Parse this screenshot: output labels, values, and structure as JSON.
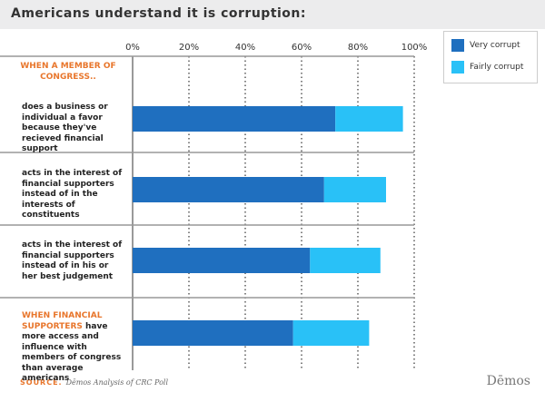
{
  "chart_data": {
    "type": "stacked-bar-horizontal",
    "title": "Americans understand it is corruption:",
    "annotations": [
      "WHEN A MEMBER OF CONGRESS..",
      "WHEN FINANCIAL SUPPORTERS"
    ],
    "categories": [
      "does a business or individual a favor because they've recieved financial support",
      "acts in the interest of financial supporters instead of in the interests of constituents",
      "acts in the interest of financial supporters instead of in his or her best judgement",
      "have more access and influence with members of congress than average americans"
    ],
    "series": [
      {
        "name": "Very corrupt",
        "color": "#1f6fbf",
        "values": [
          72,
          68,
          63,
          57
        ]
      },
      {
        "name": "Fairly corrupt",
        "color": "#29c1f7",
        "values": [
          24,
          22,
          25,
          27
        ]
      }
    ],
    "xlim": [
      0,
      100
    ],
    "xticks": [
      {
        "value": 0,
        "label": "0%"
      },
      {
        "value": 20,
        "label": "20%"
      },
      {
        "value": 40,
        "label": "40%"
      },
      {
        "value": 60,
        "label": "60%"
      },
      {
        "value": 80,
        "label": "80%"
      },
      {
        "value": 100,
        "label": "100%"
      }
    ],
    "grid": true,
    "source_label": "SOURCE.",
    "source": "Dēmos Analysis of CRC Poll",
    "logo": "Dēmos"
  }
}
